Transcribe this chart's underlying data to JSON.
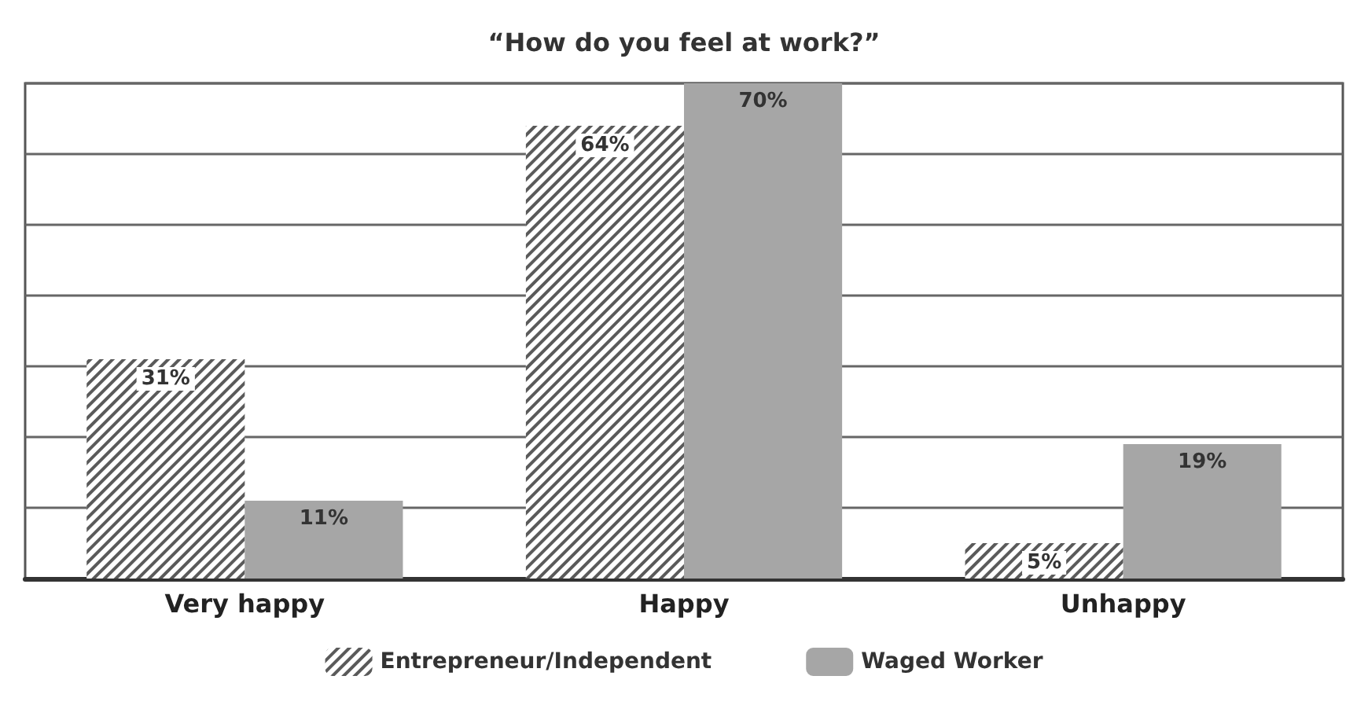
{
  "chart_data": {
    "type": "bar",
    "title": "“How do you feel at work?”",
    "categories": [
      "Very happy",
      "Happy",
      "Unhappy"
    ],
    "series": [
      {
        "name": "Entrepreneur/Independent",
        "color": "#5a5a5a",
        "values": [
          31,
          64,
          5
        ],
        "value_labels": [
          "31%",
          "64%",
          "5%"
        ]
      },
      {
        "name": "Waged Worker",
        "color": "#a6a6a6",
        "values": [
          11,
          70,
          19
        ],
        "value_labels": [
          "11%",
          "70%",
          "19%"
        ]
      }
    ],
    "grid": "y",
    "legend": "bottom",
    "tick_labels": "x"
  }
}
